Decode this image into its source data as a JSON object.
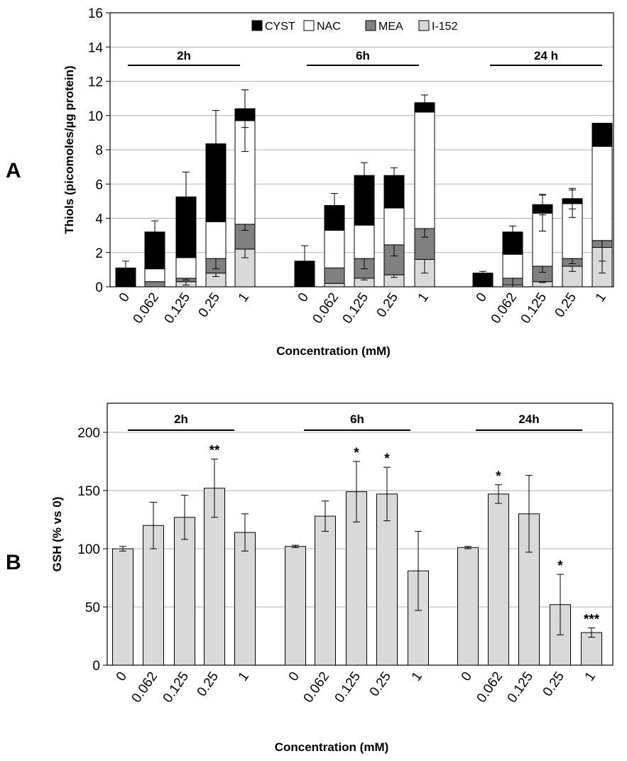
{
  "chart_data": [
    {
      "type": "bar",
      "stacked": true,
      "panel_label": "A",
      "xlabel": "Concentration (mM)",
      "ylabel": "Thiols (picomoles/µg protein)",
      "ylim": [
        0,
        16
      ],
      "yticks": [
        0,
        2,
        4,
        6,
        8,
        10,
        12,
        14,
        16
      ],
      "grid": true,
      "legend_position": "top-center",
      "legend": [
        {
          "name": "CYST",
          "color": "#000000"
        },
        {
          "name": "NAC",
          "color": "#ffffff"
        },
        {
          "name": "MEA",
          "color": "#808080"
        },
        {
          "name": "I-152",
          "color": "#d9d9d9"
        }
      ],
      "groups": [
        {
          "label": "2h",
          "categories": [
            "0",
            "0.062",
            "0.125",
            "0.25",
            "1"
          ],
          "series": [
            {
              "name": "I-152",
              "values": [
                0,
                0,
                0.3,
                0.8,
                2.2
              ],
              "errors": [
                0,
                0,
                0.2,
                0.2,
                0.5
              ]
            },
            {
              "name": "MEA",
              "values": [
                0,
                0.3,
                0.2,
                0.85,
                1.45
              ],
              "errors": [
                0,
                0,
                0.1,
                0.6,
                0.35
              ]
            },
            {
              "name": "NAC",
              "values": [
                0,
                0.75,
                1.2,
                2.15,
                6.05
              ],
              "errors": [
                0,
                0,
                0,
                0,
                1.8
              ]
            },
            {
              "name": "CYST",
              "values": [
                1.1,
                2.15,
                3.55,
                4.55,
                0.7
              ],
              "errors": [
                0.4,
                0.65,
                1.45,
                1.95,
                1.1
              ]
            }
          ]
        },
        {
          "label": "6h",
          "categories": [
            "0",
            "0.062",
            "0.125",
            "0.25",
            "1"
          ],
          "series": [
            {
              "name": "I-152",
              "values": [
                0,
                0.2,
                0.5,
                0.7,
                1.6
              ],
              "errors": [
                0,
                0,
                0.1,
                0.15,
                0.8
              ]
            },
            {
              "name": "MEA",
              "values": [
                0,
                0.9,
                1.15,
                1.75,
                1.8
              ],
              "errors": [
                0,
                0,
                0.6,
                0.65,
                0.5
              ]
            },
            {
              "name": "NAC",
              "values": [
                0,
                2.2,
                1.95,
                2.15,
                6.8
              ],
              "errors": [
                0,
                0,
                0,
                0,
                0
              ]
            },
            {
              "name": "CYST",
              "values": [
                1.5,
                1.45,
                2.9,
                1.9,
                0.55
              ],
              "errors": [
                0.9,
                0.7,
                0.75,
                0.45,
                0.45
              ]
            }
          ]
        },
        {
          "label": "24 h",
          "categories": [
            "0",
            "0.062",
            "0.125",
            "0.25",
            "1"
          ],
          "series": [
            {
              "name": "I-152",
              "values": [
                0,
                0.1,
                0.3,
                1.2,
                2.3
              ],
              "errors": [
                0,
                0,
                0.05,
                0.3,
                1.5
              ]
            },
            {
              "name": "MEA",
              "values": [
                0,
                0.4,
                0.9,
                0.45,
                0.4
              ],
              "errors": [
                0,
                0.5,
                0.35,
                0.3,
                1.2
              ]
            },
            {
              "name": "NAC",
              "values": [
                0,
                1.4,
                3.1,
                3.2,
                5.5
              ],
              "errors": [
                0,
                0,
                1.05,
                0.8,
                0
              ]
            },
            {
              "name": "CYST",
              "values": [
                0.8,
                1.3,
                0.5,
                0.3,
                1.35
              ],
              "errors": [
                0.1,
                0.35,
                0.6,
                0.6,
                0
              ]
            }
          ]
        }
      ]
    },
    {
      "type": "bar",
      "panel_label": "B",
      "xlabel": "Concentration (mM)",
      "ylabel": "GSH (% vs 0)",
      "ylim": [
        0,
        225
      ],
      "yticks": [
        0,
        50,
        100,
        150,
        200
      ],
      "grid": true,
      "bar_color": "#d9d9d9",
      "groups": [
        {
          "label": "2h",
          "categories": [
            "0",
            "0.062",
            "0.125",
            "0.25",
            "1"
          ],
          "values": [
            100,
            120,
            127,
            152,
            114
          ],
          "errors": [
            2,
            20,
            19,
            25,
            16
          ],
          "significance": [
            "",
            "",
            "",
            "**",
            ""
          ]
        },
        {
          "label": "6h",
          "categories": [
            "0",
            "0.062",
            "0.125",
            "0.25",
            "1"
          ],
          "values": [
            102,
            128,
            149,
            147,
            81
          ],
          "errors": [
            1,
            13,
            26,
            23,
            34
          ],
          "significance": [
            "",
            "",
            "*",
            "*",
            ""
          ]
        },
        {
          "label": "24h",
          "categories": [
            "0",
            "0.062",
            "0.125",
            "0.25",
            "1"
          ],
          "values": [
            101,
            147,
            130,
            52,
            28
          ],
          "errors": [
            1,
            8,
            33,
            26,
            4
          ],
          "significance": [
            "",
            "*",
            "",
            "*",
            "***"
          ]
        }
      ]
    }
  ]
}
